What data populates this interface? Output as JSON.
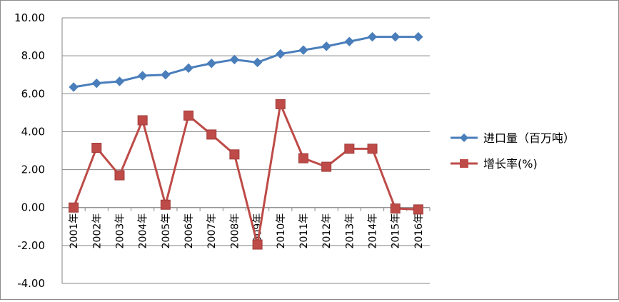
{
  "chart_data": {
    "type": "line",
    "x": [
      "2001年",
      "2002年",
      "2003年",
      "2004年",
      "2005年",
      "2006年",
      "2007年",
      "2008年",
      "2009年",
      "2010年",
      "2011年",
      "2012年",
      "2013年",
      "2014年",
      "2015年",
      "2016年"
    ],
    "series": [
      {
        "name": "进口量（百万吨）",
        "color": "#4a7ebb",
        "marker": "diamond",
        "values": [
          6.35,
          6.55,
          6.65,
          6.95,
          7.0,
          7.35,
          7.6,
          7.8,
          7.65,
          8.1,
          8.3,
          8.5,
          8.75,
          9.0,
          9.0,
          9.0
        ]
      },
      {
        "name": "增长率(%)",
        "color": "#be4b48",
        "marker": "square",
        "values": [
          0.0,
          3.15,
          1.7,
          4.6,
          0.15,
          4.85,
          3.85,
          2.8,
          -1.95,
          5.45,
          2.6,
          2.15,
          3.1,
          3.1,
          -0.05,
          -0.1
        ]
      }
    ],
    "yticks": [
      "10.00",
      "8.00",
      "6.00",
      "4.00",
      "2.00",
      "0.00",
      "-2.00",
      "-4.00"
    ],
    "ylim": [
      -4,
      10
    ],
    "grid": true,
    "legend_position": "right"
  }
}
